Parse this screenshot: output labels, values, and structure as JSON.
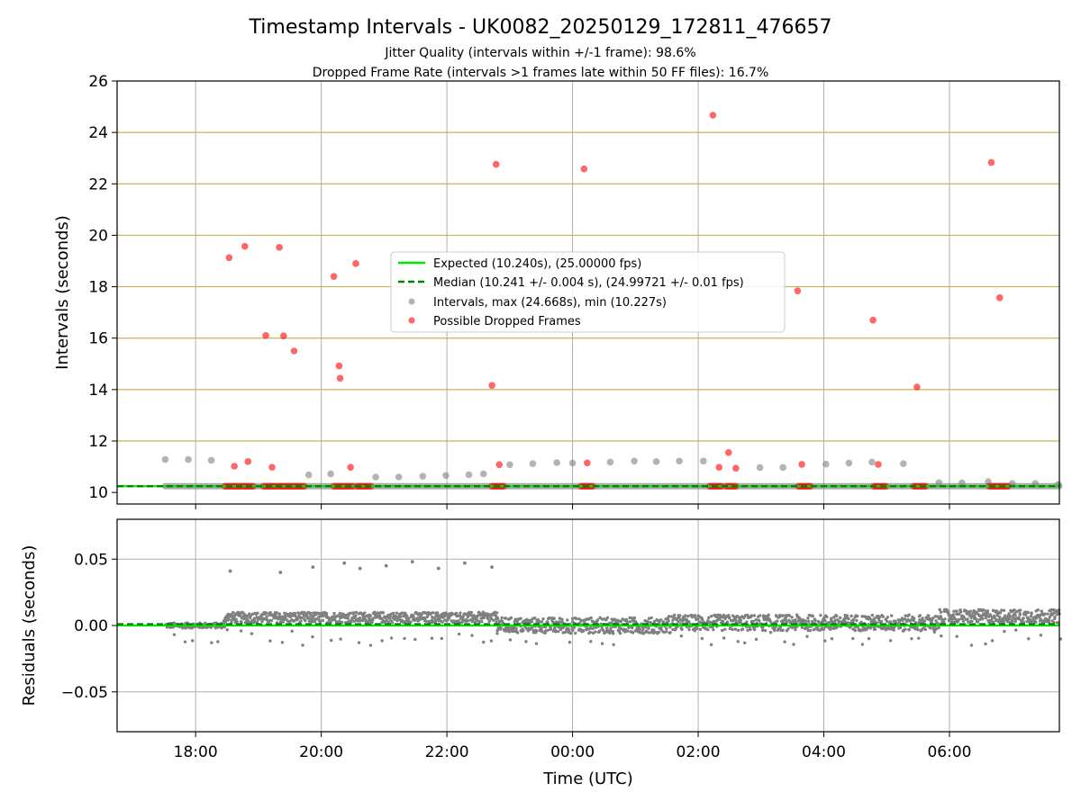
{
  "figure": {
    "title": "Timestamp Intervals - UK0082_20250129_172811_476657",
    "subtitle_1": "Jitter Quality (intervals within +/-1 frame): 98.6%",
    "subtitle_2": "Dropped Frame Rate (intervals >1 frames late within 50 FF files): 16.7%",
    "xlabel": "Time (UTC)"
  },
  "colors": {
    "expected": "#00e600",
    "median": "#008000",
    "intervals": "#808080",
    "dropped": "#ff0000",
    "grid_y_top": "#c8b25a",
    "grid": "#b0b0b0"
  },
  "chart_data": [
    {
      "type": "scatter",
      "ylabel": "Intervals (seconds)",
      "ylim": [
        9.55,
        26
      ],
      "yticks": [
        10,
        12,
        14,
        16,
        18,
        20,
        22,
        24,
        26
      ],
      "ytick_labels": [
        "10",
        "12",
        "14",
        "16",
        "18",
        "20",
        "22",
        "24",
        "26"
      ],
      "xlim": [
        "2025-01-29 16:45",
        "2025-01-30 07:45"
      ],
      "xticks": [
        "2025-01-29 18:00",
        "2025-01-29 20:00",
        "2025-01-29 22:00",
        "2025-01-30 00:00",
        "2025-01-30 02:00",
        "2025-01-30 04:00",
        "2025-01-30 06:00"
      ],
      "xtick_labels": [
        "18:00",
        "20:00",
        "22:00",
        "00:00",
        "02:00",
        "04:00",
        "06:00"
      ],
      "grid": true,
      "legend_position": "center",
      "lines": [
        {
          "name": "Expected (10.240s), (25.00000 fps)",
          "y": 10.24,
          "style": "solid"
        },
        {
          "name": "Median (10.241 +/- 0.004 s), (24.99721 +/- 0.01 fps)",
          "y": 10.241,
          "style": "dashed"
        }
      ],
      "series": [
        {
          "name": "Intervals, max (24.668s), min (10.227s)",
          "points": [
            [
              "2025-01-29 17:31",
              11.28
            ],
            [
              "2025-01-29 17:53",
              11.28
            ],
            [
              "2025-01-29 18:15",
              11.25
            ],
            [
              "2025-01-29 19:48",
              10.68
            ],
            [
              "2025-01-29 20:09",
              10.72
            ],
            [
              "2025-01-29 20:52",
              10.6
            ],
            [
              "2025-01-29 21:14",
              10.6
            ],
            [
              "2025-01-29 21:37",
              10.63
            ],
            [
              "2025-01-29 21:59",
              10.66
            ],
            [
              "2025-01-29 22:21",
              10.69
            ],
            [
              "2025-01-29 22:35",
              10.72
            ],
            [
              "2025-01-29 23:00",
              11.08
            ],
            [
              "2025-01-29 23:22",
              11.12
            ],
            [
              "2025-01-29 23:45",
              11.16
            ],
            [
              "2025-01-30 00:00",
              11.14
            ],
            [
              "2025-01-30 00:36",
              11.18
            ],
            [
              "2025-01-30 00:59",
              11.22
            ],
            [
              "2025-01-30 01:20",
              11.2
            ],
            [
              "2025-01-30 01:42",
              11.22
            ],
            [
              "2025-01-30 02:05",
              11.22
            ],
            [
              "2025-01-30 02:59",
              10.97
            ],
            [
              "2025-01-30 03:21",
              10.97
            ],
            [
              "2025-01-30 04:02",
              11.1
            ],
            [
              "2025-01-30 04:24",
              11.14
            ],
            [
              "2025-01-30 04:46",
              11.18
            ],
            [
              "2025-01-30 05:16",
              11.12
            ],
            [
              "2025-01-30 05:50",
              10.38
            ],
            [
              "2025-01-30 06:12",
              10.37
            ],
            [
              "2025-01-30 06:37",
              10.42
            ],
            [
              "2025-01-30 07:00",
              10.35
            ],
            [
              "2025-01-30 07:22",
              10.35
            ],
            [
              "2025-01-30 07:44",
              10.32
            ]
          ],
          "baseline": {
            "y": 10.24,
            "x_from": "2025-01-29 17:31",
            "x_to": "2025-01-30 07:45"
          }
        },
        {
          "name": "Possible Dropped Frames",
          "points": [
            [
              "2025-01-29 18:32",
              19.13
            ],
            [
              "2025-01-29 18:37",
              11.02
            ],
            [
              "2025-01-29 18:47",
              19.57
            ],
            [
              "2025-01-29 18:50",
              11.2
            ],
            [
              "2025-01-29 19:07",
              16.1
            ],
            [
              "2025-01-29 19:13",
              10.98
            ],
            [
              "2025-01-29 19:20",
              19.53
            ],
            [
              "2025-01-29 19:24",
              16.09
            ],
            [
              "2025-01-29 19:34",
              15.5
            ],
            [
              "2025-01-29 20:12",
              18.4
            ],
            [
              "2025-01-29 20:17",
              14.92
            ],
            [
              "2025-01-29 20:18",
              14.44
            ],
            [
              "2025-01-29 20:28",
              10.98
            ],
            [
              "2025-01-29 20:33",
              18.9
            ],
            [
              "2025-01-29 22:43",
              14.16
            ],
            [
              "2025-01-29 22:47",
              22.76
            ],
            [
              "2025-01-29 22:50",
              11.08
            ],
            [
              "2025-01-30 00:11",
              22.58
            ],
            [
              "2025-01-30 00:14",
              11.15
            ],
            [
              "2025-01-30 02:14",
              24.67
            ],
            [
              "2025-01-30 02:20",
              10.98
            ],
            [
              "2025-01-30 02:29",
              11.55
            ],
            [
              "2025-01-30 02:36",
              10.94
            ],
            [
              "2025-01-30 03:35",
              17.84
            ],
            [
              "2025-01-30 03:39",
              11.09
            ],
            [
              "2025-01-30 04:47",
              16.7
            ],
            [
              "2025-01-30 04:52",
              11.09
            ],
            [
              "2025-01-30 05:29",
              14.1
            ],
            [
              "2025-01-30 06:40",
              22.83
            ],
            [
              "2025-01-30 06:48",
              17.57
            ]
          ],
          "clusters_at_baseline": [
            [
              "2025-01-29 18:28",
              "2025-01-29 18:44"
            ],
            [
              "2025-01-29 18:46",
              "2025-01-29 18:56"
            ],
            [
              "2025-01-29 19:05",
              "2025-01-29 19:17"
            ],
            [
              "2025-01-29 19:19",
              "2025-01-29 19:45"
            ],
            [
              "2025-01-29 20:12",
              "2025-01-29 20:32"
            ],
            [
              "2025-01-29 20:34",
              "2025-01-29 20:48"
            ],
            [
              "2025-01-29 22:43",
              "2025-01-29 22:55"
            ],
            [
              "2025-01-30 00:08",
              "2025-01-30 00:21"
            ],
            [
              "2025-01-30 02:11",
              "2025-01-30 02:24"
            ],
            [
              "2025-01-30 02:27",
              "2025-01-30 02:38"
            ],
            [
              "2025-01-30 03:36",
              "2025-01-30 03:48"
            ],
            [
              "2025-01-30 04:48",
              "2025-01-30 05:00"
            ],
            [
              "2025-01-30 05:26",
              "2025-01-30 05:38"
            ],
            [
              "2025-01-30 06:38",
              "2025-01-30 06:57"
            ]
          ]
        }
      ]
    },
    {
      "type": "scatter",
      "ylabel": "Residuals (seconds)",
      "ylim": [
        -0.08,
        0.08
      ],
      "yticks": [
        -0.05,
        0.0,
        0.05
      ],
      "ytick_labels": [
        "−0.05",
        "0.00",
        "0.05"
      ],
      "xlim": [
        "2025-01-29 16:45",
        "2025-01-30 07:45"
      ],
      "grid": true,
      "lines": [
        {
          "name": "Expected",
          "y": 0.0,
          "style": "solid"
        },
        {
          "name": "Median",
          "y": 0.001,
          "style": "dashed"
        }
      ],
      "outliers": [
        [
          "2025-01-29 18:33",
          0.041
        ],
        [
          "2025-01-29 19:21",
          0.04
        ],
        [
          "2025-01-29 19:52",
          0.044
        ],
        [
          "2025-01-29 20:22",
          0.047
        ],
        [
          "2025-01-29 20:37",
          0.043
        ],
        [
          "2025-01-29 21:02",
          0.045
        ],
        [
          "2025-01-29 21:27",
          0.048
        ],
        [
          "2025-01-29 21:52",
          0.043
        ],
        [
          "2025-01-29 22:17",
          0.047
        ],
        [
          "2025-01-29 22:43",
          0.044
        ]
      ],
      "residual_bands": [
        {
          "from": "2025-01-29 17:31",
          "to": "2025-01-29 18:27",
          "center": 0.0,
          "spread": 0.002
        },
        {
          "from": "2025-01-29 18:27",
          "to": "2025-01-29 22:48",
          "center": 0.006,
          "spread": 0.004
        },
        {
          "from": "2025-01-29 22:48",
          "to": "2025-01-30 01:30",
          "center": 0.0,
          "spread": 0.006
        },
        {
          "from": "2025-01-30 01:30",
          "to": "2025-01-30 05:50",
          "center": 0.002,
          "spread": 0.006
        },
        {
          "from": "2025-01-30 05:50",
          "to": "2025-01-30 07:45",
          "center": 0.007,
          "spread": 0.005
        }
      ]
    }
  ]
}
